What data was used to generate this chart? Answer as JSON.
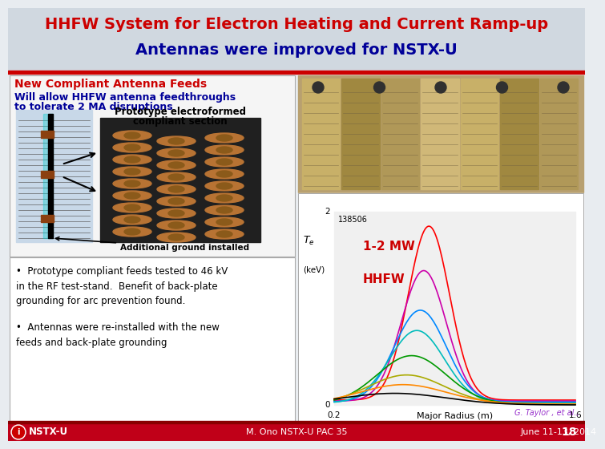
{
  "title_line1": "HHFW System for Electron Heating and Current Ramp-up",
  "title_line2": "Antennas were improved for NSTX-U",
  "title_color1": "#cc0000",
  "title_color2": "#000099",
  "slide_bg": "#e8ecf0",
  "title_bg": "#d0d8e0",
  "red_bar_color": "#cc0000",
  "section_title": "New Compliant Antenna Feeds",
  "section_sub1": "Will allow HHFW antenna feedthroughs",
  "section_sub2": "to tolerate 2 MA disruptions",
  "proto_label1": "Prototype electroformed",
  "proto_label2": "compliant section",
  "ground_label": "Additional ground installed",
  "mw_label1": "1-2 MW",
  "mw_label2": "HHFW",
  "te_label": "$T_e$\n(keV)",
  "x_label": "Major Radius (m)",
  "shot_label": "138506",
  "y_max_label": "2",
  "x_min_label": "0.2",
  "x_max_label": "1.6",
  "y_zero_label": "0",
  "citation": "G. Taylor , et al.,",
  "bullet1": "Prototype compliant feeds tested to 46 kV\nin the RF test-stand.  Benefit of back-plate\ngrounding for arc prevention found.",
  "bullet2": "Antennas were re-installed with the new\nfeeds and back-plate grounding",
  "footer_left": "NSTX-U",
  "footer_center": "M. Ono NSTX-U PAC 35",
  "footer_right": "June 11-13, 2014",
  "footer_page": "18",
  "footer_bg": "#c00018",
  "panel_bg": "#f5f5f5",
  "panel_border": "#aaaaaa",
  "curve_colors": [
    "#ff0000",
    "#cc00cc",
    "#0099ff",
    "#00cccc",
    "#009900",
    "#cccc00",
    "#ff6600",
    "#333333"
  ],
  "graph_bg": "#f0f0f0"
}
